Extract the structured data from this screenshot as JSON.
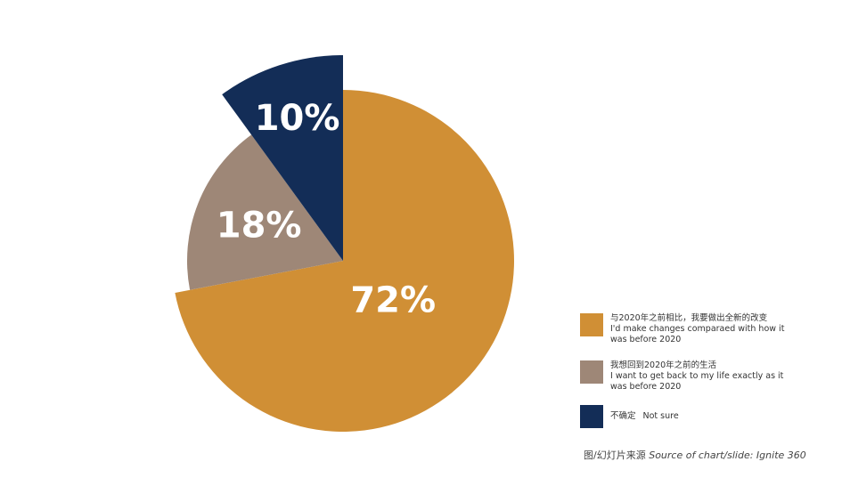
{
  "chart_data": {
    "type": "pie",
    "categories": [
      "与2020年之前相比，我要做出全新的改变",
      "我想回到2020年之前的生活",
      "不确定"
    ],
    "category_notes": [
      "I'd make changes comparaed with how it was before 2020",
      "I want to get back to my life exactly as it was before 2020",
      "Not sure"
    ],
    "values": [
      72,
      18,
      10
    ],
    "value_labels": [
      "72%",
      "18%",
      "10%"
    ],
    "colors": [
      "#d08f35",
      "#9e8777",
      "#132d57"
    ],
    "source_label": "图/幻灯片来源",
    "source": "Source of chart/slide: Ignite 360"
  }
}
